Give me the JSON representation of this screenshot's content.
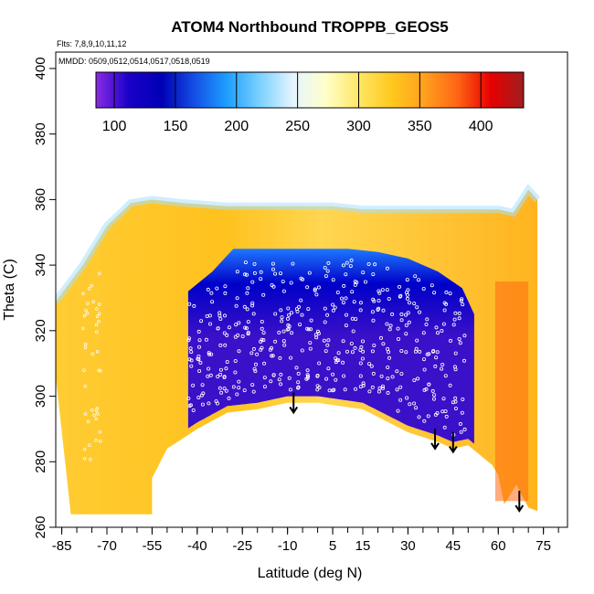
{
  "chart_data": {
    "type": "heatmap",
    "title": "ATOM4 Northbound TROPPB_GEOS5",
    "flights_note": "Flts: 7,8,9,10,11,12",
    "dates_note": "MMDD: 0509,0512,0514,0517,0518,0519",
    "xlabel": "Latitude (deg N)",
    "ylabel": "Theta (C)",
    "xlim": [
      -87,
      83
    ],
    "ylim": [
      260,
      405
    ],
    "x_ticks": [
      -85,
      -70,
      -55,
      -40,
      -25,
      -10,
      5,
      15,
      30,
      45,
      60,
      75
    ],
    "y_ticks": [
      260,
      280,
      300,
      320,
      340,
      360,
      380,
      400
    ],
    "colorbar": {
      "min": 85,
      "max": 435,
      "ticks": [
        100,
        150,
        200,
        250,
        300,
        350,
        400
      ],
      "colors": [
        "#8a2be2",
        "#1a00c8",
        "#0000b4",
        "#1450e6",
        "#1ea0ff",
        "#7dd2ff",
        "#e6f5ff",
        "#ffffc8",
        "#ffe664",
        "#ffc81e",
        "#ffa01e",
        "#ff6414",
        "#e60000",
        "#a01e1e"
      ]
    },
    "grid": false,
    "regions": {
      "outer_curtain": {
        "lat_range": [
          -87,
          73
        ],
        "top_theta": [
          [
            -87,
            329
          ],
          [
            -78,
            340
          ],
          [
            -70,
            352
          ],
          [
            -62,
            359
          ],
          [
            -55,
            360
          ],
          [
            -45,
            359
          ],
          [
            -30,
            358
          ],
          [
            -10,
            358
          ],
          [
            5,
            358
          ],
          [
            15,
            357
          ],
          [
            35,
            357
          ],
          [
            50,
            357
          ],
          [
            60,
            357
          ],
          [
            65,
            356
          ],
          [
            70,
            363
          ],
          [
            73,
            360
          ]
        ],
        "bottom_theta": [
          [
            -87,
            306
          ],
          [
            -82,
            264
          ],
          [
            -55,
            264
          ],
          [
            -55,
            275
          ],
          [
            -50,
            284
          ],
          [
            -45,
            287
          ],
          [
            -40,
            290
          ],
          [
            -30,
            295
          ],
          [
            -20,
            296
          ],
          [
            -10,
            298
          ],
          [
            0,
            298
          ],
          [
            15,
            296
          ],
          [
            30,
            289
          ],
          [
            40,
            286
          ],
          [
            45,
            284
          ],
          [
            50,
            285
          ],
          [
            58,
            279
          ],
          [
            60,
            276
          ],
          [
            62,
            267
          ],
          [
            66,
            273
          ],
          [
            70,
            266
          ],
          [
            73,
            265
          ]
        ],
        "typical_value": 320
      },
      "tropical_core": {
        "lat_range": [
          -43,
          52
        ],
        "top_theta": [
          [
            -43,
            332
          ],
          [
            -35,
            338
          ],
          [
            -28,
            345
          ],
          [
            -20,
            345
          ],
          [
            -10,
            345
          ],
          [
            0,
            345
          ],
          [
            10,
            345
          ],
          [
            20,
            344
          ],
          [
            30,
            342
          ],
          [
            40,
            338
          ],
          [
            48,
            333
          ],
          [
            52,
            325
          ]
        ],
        "typical_value": 130
      },
      "high_ozone_north": {
        "lat_range": [
          59,
          70
        ],
        "theta_range": [
          268,
          335
        ],
        "typical_value": 375
      }
    },
    "tropopause_arrows": [
      {
        "lat": -8,
        "theta": 301
      },
      {
        "lat": 39,
        "theta": 290
      },
      {
        "lat": 45,
        "theta": 289
      },
      {
        "lat": 67,
        "theta": 271
      }
    ]
  }
}
